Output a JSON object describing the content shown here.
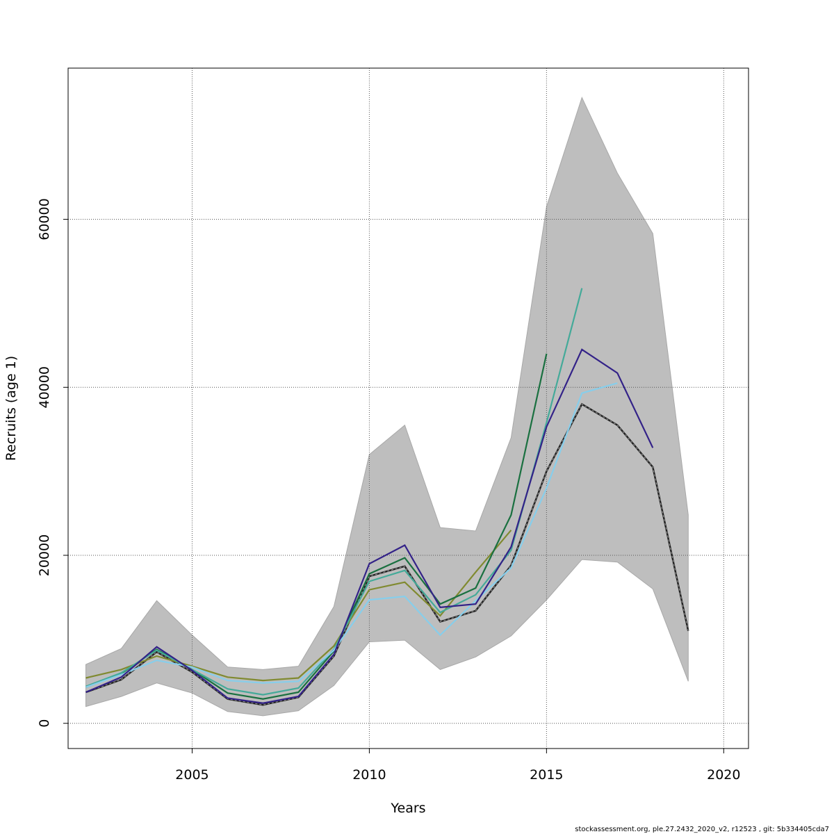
{
  "chart_data": {
    "type": "line",
    "title": "",
    "xlabel": "Years",
    "ylabel": "Recruits (age 1)",
    "xlim": [
      2001.5,
      2020.7
    ],
    "ylim": [
      -3000,
      78000
    ],
    "xticks": [
      2005,
      2010,
      2015,
      2020
    ],
    "yticks": [
      0,
      20000,
      40000,
      60000
    ],
    "grid": true,
    "confidence_band": {
      "x": [
        2002,
        2003,
        2004,
        2005,
        2006,
        2007,
        2008,
        2009,
        2010,
        2011,
        2012,
        2013,
        2014,
        2015,
        2016,
        2017,
        2018,
        2019
      ],
      "upper": [
        7000,
        8900,
        14600,
        10500,
        6700,
        6400,
        6800,
        13900,
        32000,
        35500,
        23300,
        22900,
        34000,
        61500,
        74500,
        65500,
        58300,
        24800
      ],
      "lower": [
        2000,
        3200,
        4800,
        3600,
        1400,
        900,
        1500,
        4500,
        9700,
        9900,
        6400,
        7900,
        10400,
        14700,
        19500,
        19200,
        16000,
        5000
      ]
    },
    "series": [
      {
        "color": "#222222",
        "dashed": true,
        "x": [
          2002,
          2003,
          2004,
          2005,
          2006,
          2007,
          2008,
          2009,
          2010,
          2011,
          2012,
          2013,
          2014,
          2015,
          2016,
          2017,
          2018,
          2019
        ],
        "values": [
          3700,
          5200,
          8500,
          6100,
          2900,
          2200,
          3100,
          8000,
          17500,
          18700,
          12100,
          13400,
          18800,
          30000,
          38000,
          35500,
          30500,
          11000
        ]
      },
      {
        "color": "#808a30",
        "dashed": false,
        "x": [
          2002,
          2003,
          2004,
          2005,
          2006,
          2007,
          2008,
          2009,
          2010,
          2011,
          2012,
          2013,
          2014
        ],
        "values": [
          5400,
          6400,
          8000,
          6800,
          5500,
          5100,
          5400,
          9200,
          15900,
          16800,
          12800,
          18000,
          23000
        ]
      },
      {
        "color": "#1a7040",
        "dashed": false,
        "x": [
          2002,
          2003,
          2004,
          2005,
          2006,
          2007,
          2008,
          2009,
          2010,
          2011,
          2012,
          2013,
          2014,
          2015
        ],
        "values": [
          4300,
          5900,
          8800,
          6400,
          3600,
          2900,
          3700,
          8600,
          17800,
          19700,
          14200,
          16100,
          24800,
          44000
        ]
      },
      {
        "color": "#44aa99",
        "dashed": false,
        "x": [
          2002,
          2003,
          2004,
          2005,
          2006,
          2007,
          2008,
          2009,
          2010,
          2011,
          2012,
          2013,
          2014,
          2015,
          2016
        ],
        "values": [
          4400,
          6000,
          8700,
          6400,
          4100,
          3400,
          4200,
          8800,
          16900,
          18200,
          13200,
          15300,
          20600,
          35800,
          51800
        ]
      },
      {
        "color": "#87ceeb",
        "dashed": false,
        "x": [
          2002,
          2003,
          2004,
          2005,
          2006,
          2007,
          2008,
          2009,
          2010,
          2011,
          2012,
          2013,
          2014,
          2015,
          2016,
          2017
        ],
        "values": [
          4300,
          5800,
          7500,
          6700,
          5100,
          4800,
          5000,
          8700,
          14700,
          15100,
          10500,
          14600,
          18500,
          28000,
          39300,
          40500
        ]
      },
      {
        "color": "#332288",
        "dashed": false,
        "x": [
          2002,
          2003,
          2004,
          2005,
          2006,
          2007,
          2008,
          2009,
          2010,
          2011,
          2012,
          2013,
          2014,
          2015,
          2016,
          2017,
          2018
        ],
        "values": [
          3700,
          5500,
          9100,
          6300,
          3000,
          2400,
          3200,
          8200,
          19000,
          21200,
          13800,
          14200,
          21000,
          35300,
          44500,
          41700,
          32800
        ]
      }
    ]
  },
  "footer": "stockassessment.org, ple.27.2432_2020_v2, r12523 , git: 5b334405cda7"
}
